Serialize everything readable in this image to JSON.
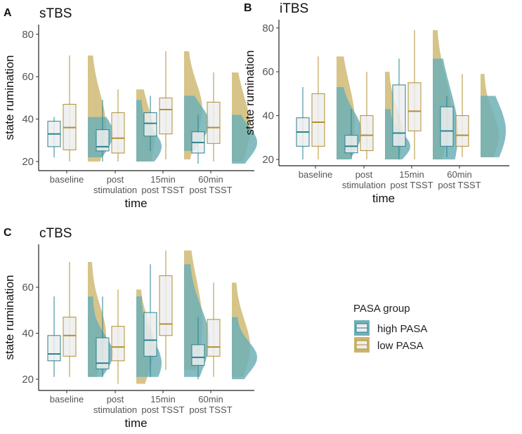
{
  "chart_data": [
    {
      "type": "boxplot",
      "panel_label": "A",
      "title": "sTBS",
      "xlabel": "time",
      "ylabel": "state rumination",
      "yticks": [
        20,
        40,
        60,
        80
      ],
      "ylim": [
        16,
        85
      ],
      "categories": [
        [
          "baseline"
        ],
        [
          "post",
          "stimulation"
        ],
        [
          "15min",
          "post TSST"
        ],
        [
          "60min",
          "post TSST"
        ]
      ],
      "series": [
        {
          "name": "high PASA",
          "boxes": [
            {
              "min": 22,
              "q1": 27,
              "median": 33,
              "q3": 39,
              "max": 41
            },
            {
              "min": 20,
              "q1": 25,
              "median": 27,
              "q3": 35,
              "max": 49
            },
            {
              "min": 25,
              "q1": 32,
              "median": 38,
              "q3": 43,
              "max": 51
            },
            {
              "min": 19,
              "q1": 24,
              "median": 29,
              "q3": 34,
              "max": 42
            }
          ]
        },
        {
          "name": "low PASA",
          "boxes": [
            {
              "min": 20,
              "q1": 25.5,
              "median": 36,
              "q3": 47,
              "max": 70
            },
            {
              "min": 20,
              "q1": 24,
              "median": 31,
              "q3": 43,
              "max": 54
            },
            {
              "min": 21,
              "q1": 33,
              "median": 44.5,
              "q3": 50,
              "max": 72
            },
            {
              "min": 20,
              "q1": 28.5,
              "median": 36,
              "q3": 48,
              "max": 62
            }
          ]
        }
      ]
    },
    {
      "type": "boxplot",
      "panel_label": "B",
      "title": "iTBS",
      "xlabel": "time",
      "ylabel": "state rumination",
      "yticks": [
        20,
        40,
        60,
        80
      ],
      "ylim": [
        17,
        82
      ],
      "categories": [
        [
          "baseline"
        ],
        [
          "post",
          "stimulation"
        ],
        [
          "15min",
          "post TSST"
        ],
        [
          "60min",
          "post TSST"
        ]
      ],
      "series": [
        {
          "name": "high PASA",
          "boxes": [
            {
              "min": 20,
              "q1": 26,
              "median": 32.5,
              "q3": 39,
              "max": 53
            },
            {
              "min": 20,
              "q1": 23,
              "median": 26,
              "q3": 31,
              "max": 43
            },
            {
              "min": 20,
              "q1": 26,
              "median": 32,
              "q3": 54,
              "max": 66
            },
            {
              "min": 21,
              "q1": 26,
              "median": 33,
              "q3": 44,
              "max": 49
            }
          ]
        },
        {
          "name": "low PASA",
          "boxes": [
            {
              "min": 20,
              "q1": 26,
              "median": 37,
              "q3": 50,
              "max": 67
            },
            {
              "min": 20,
              "q1": 24,
              "median": 31,
              "q3": 40,
              "max": 60
            },
            {
              "min": 20,
              "q1": 33,
              "median": 42,
              "q3": 55,
              "max": 79
            },
            {
              "min": 21,
              "q1": 26,
              "median": 31,
              "q3": 40,
              "max": 59
            }
          ]
        }
      ]
    },
    {
      "type": "boxplot",
      "panel_label": "C",
      "title": "cTBS",
      "xlabel": "time",
      "ylabel": "state rumination",
      "yticks": [
        20,
        40,
        60
      ],
      "ylim": [
        15,
        78
      ],
      "categories": [
        [
          "baseline"
        ],
        [
          "post",
          "stimulation"
        ],
        [
          "15min",
          "post TSST"
        ],
        [
          "60min",
          "post TSST"
        ]
      ],
      "series": [
        {
          "name": "high PASA",
          "boxes": [
            {
              "min": 21,
              "q1": 28,
              "median": 31,
              "q3": 39,
              "max": 56
            },
            {
              "min": 21,
              "q1": 24.5,
              "median": 27,
              "q3": 38,
              "max": 56
            },
            {
              "min": 21,
              "q1": 30,
              "median": 37,
              "q3": 49,
              "max": 70
            },
            {
              "min": 20,
              "q1": 26,
              "median": 29.5,
              "q3": 35,
              "max": 47
            }
          ]
        },
        {
          "name": "low PASA",
          "boxes": [
            {
              "min": 21,
              "q1": 30,
              "median": 39,
              "q3": 47,
              "max": 71
            },
            {
              "min": 18,
              "q1": 28,
              "median": 34,
              "q3": 43,
              "max": 59
            },
            {
              "min": 24,
              "q1": 39,
              "median": 44,
              "q3": 65,
              "max": 76
            },
            {
              "min": 21,
              "q1": 30,
              "median": 34,
              "q3": 46,
              "max": 62
            }
          ]
        }
      ]
    }
  ],
  "legend": {
    "title": "PASA group",
    "placement": "right",
    "items": [
      {
        "label": "high PASA",
        "color": "#2b8291",
        "fill": "#6fb0b6"
      },
      {
        "label": "low PASA",
        "color": "#b09030",
        "fill": "#cdb56b"
      }
    ]
  }
}
